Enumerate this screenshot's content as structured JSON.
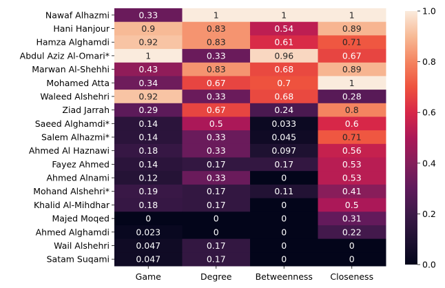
{
  "chart_data": {
    "type": "heatmap",
    "title": "",
    "xlabel": "",
    "ylabel": "",
    "columns": [
      "Game",
      "Degree",
      "Betweenness",
      "Closeness"
    ],
    "rows": [
      "Nawaf Alhazmi",
      "Hani Hanjour",
      "Hamza Alghamdi",
      "Abdul Aziz Al-Omari*",
      "Marwan Al-Shehhi",
      "Mohamed Atta",
      "Waleed Alshehri",
      "Ziad Jarrah",
      "Saeed Alghamdi*",
      "Salem Alhazmi*",
      "Ahmed Al Haznawi",
      "Fayez Ahmed",
      "Ahmed Alnami",
      "Mohand Alshehri*",
      "Khalid Al-Mihdhar",
      "Majed Moqed",
      "Ahmed Alghamdi",
      "Wail Alshehri",
      "Satam Suqami"
    ],
    "values": [
      [
        0.33,
        1,
        1,
        1
      ],
      [
        0.9,
        0.83,
        0.54,
        0.89
      ],
      [
        0.92,
        0.83,
        0.61,
        0.71
      ],
      [
        1,
        0.33,
        0.96,
        0.67
      ],
      [
        0.43,
        0.83,
        0.68,
        0.89
      ],
      [
        0.34,
        0.67,
        0.7,
        1
      ],
      [
        0.92,
        0.33,
        0.68,
        0.28
      ],
      [
        0.29,
        0.67,
        0.24,
        0.8
      ],
      [
        0.14,
        0.5,
        0.033,
        0.6
      ],
      [
        0.14,
        0.33,
        0.045,
        0.71
      ],
      [
        0.18,
        0.33,
        0.097,
        0.56
      ],
      [
        0.14,
        0.17,
        0.17,
        0.53
      ],
      [
        0.12,
        0.33,
        0,
        0.53
      ],
      [
        0.19,
        0.17,
        0.11,
        0.41
      ],
      [
        0.18,
        0.17,
        0,
        0.5
      ],
      [
        0,
        0,
        0,
        0.31
      ],
      [
        0.023,
        0,
        0,
        0.22
      ],
      [
        0.047,
        0.17,
        0,
        0
      ],
      [
        0.047,
        0.17,
        0,
        0
      ]
    ],
    "labels": [
      [
        "0.33",
        "1",
        "1",
        "1"
      ],
      [
        "0.9",
        "0.83",
        "0.54",
        "0.89"
      ],
      [
        "0.92",
        "0.83",
        "0.61",
        "0.71"
      ],
      [
        "1",
        "0.33",
        "0.96",
        "0.67"
      ],
      [
        "0.43",
        "0.83",
        "0.68",
        "0.89"
      ],
      [
        "0.34",
        "0.67",
        "0.7",
        "1"
      ],
      [
        "0.92",
        "0.33",
        "0.68",
        "0.28"
      ],
      [
        "0.29",
        "0.67",
        "0.24",
        "0.8"
      ],
      [
        "0.14",
        "0.5",
        "0.033",
        "0.6"
      ],
      [
        "0.14",
        "0.33",
        "0.045",
        "0.71"
      ],
      [
        "0.18",
        "0.33",
        "0.097",
        "0.56"
      ],
      [
        "0.14",
        "0.17",
        "0.17",
        "0.53"
      ],
      [
        "0.12",
        "0.33",
        "0",
        "0.53"
      ],
      [
        "0.19",
        "0.17",
        "0.11",
        "0.41"
      ],
      [
        "0.18",
        "0.17",
        "0",
        "0.5"
      ],
      [
        "0",
        "0",
        "0",
        "0.31"
      ],
      [
        "0.023",
        "0",
        "0",
        "0.22"
      ],
      [
        "0.047",
        "0.17",
        "0",
        "0"
      ],
      [
        "0.047",
        "0.17",
        "0",
        "0"
      ]
    ],
    "colorbar": {
      "range": [
        0,
        1
      ],
      "ticks": [
        0,
        0.2,
        0.4,
        0.6,
        0.8,
        1
      ],
      "tick_labels": [
        "0.0",
        "0.2",
        "0.4",
        "0.6",
        "0.8",
        "1.0"
      ],
      "colormap": "rocket"
    },
    "grid": false,
    "legend": "colorbar-right"
  }
}
